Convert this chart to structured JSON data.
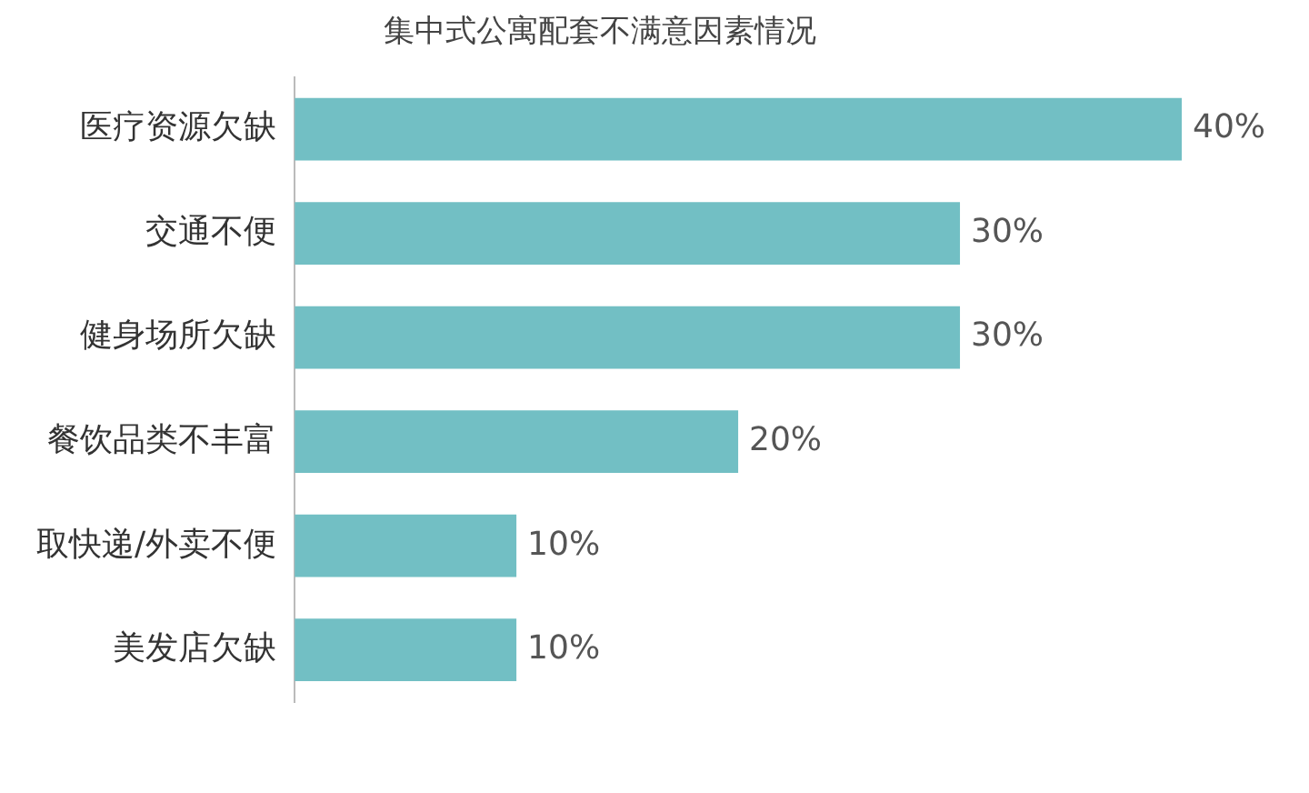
{
  "chart_data": {
    "type": "bar",
    "orientation": "horizontal",
    "title": "集中式公寓配套不满意因素情况",
    "categories": [
      "医疗资源欠缺",
      "交通不便",
      "健身场所欠缺",
      "餐饮品类不丰富",
      "取快递/外卖不便",
      "美发店欠缺"
    ],
    "values": [
      40,
      30,
      30,
      20,
      10,
      10
    ],
    "value_labels": [
      "40%",
      "30%",
      "30%",
      "20%",
      "10%",
      "10%"
    ],
    "color": "#72bfc4"
  }
}
